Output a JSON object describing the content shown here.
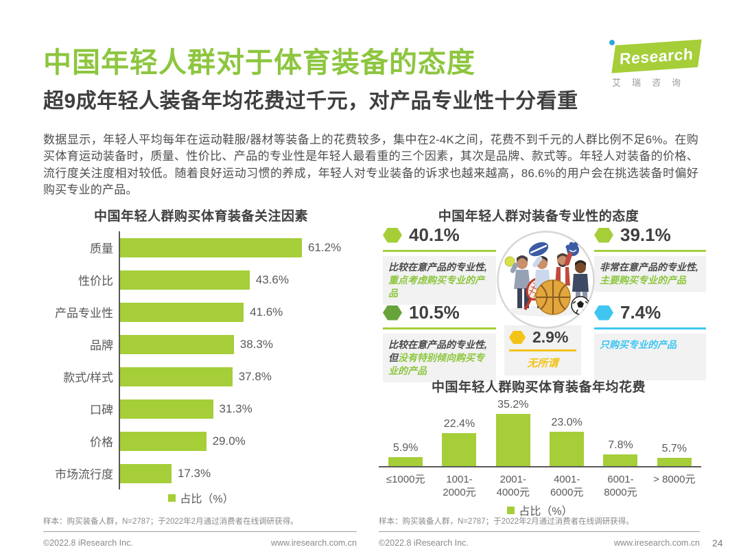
{
  "colors": {
    "brand-green": "#8DC63F",
    "bar-green": "#A5CE39",
    "dark-green": "#67A33B",
    "yellow": "#F3C318",
    "cyan": "#3EC6F0",
    "dot-blue": "#2EA7E0",
    "box-gray": "#F2F2F2"
  },
  "header": {
    "title": "中国年轻人群对于体育装备的态度",
    "subtitle": "超9成年轻人装备年均花费过千元，对产品专业性十分看重"
  },
  "logo": {
    "brand_prefix": "i",
    "brand": "Research",
    "subtext": "艾瑞咨询"
  },
  "intro": {
    "text": "数据显示，年轻人平均每年在运动鞋服/器材等装备上的花费较多，集中在2-4K之间，花费不到千元的人群比例不足6%。在购买体育运动装备时，质量、性价比、产品的专业性是年轻人最看重的三个因素，其次是品牌、款式等。年轻人对装备的价格、流行度关注度相对较低。随着良好运动习惯的养成，年轻人对专业装备的诉求也越来越高，86.6%的用户会在挑选装备时偏好购买专业的产品。"
  },
  "attitude": {
    "title": "中国年轻人群对装备专业性的态度",
    "stats": [
      {
        "value": "40.1%",
        "desc_plain": "比较在意产品的专业性,",
        "desc_highlight": "重点考虑购买专业的产品"
      },
      {
        "value": "39.1%",
        "desc_plain": "非常在意产品的专业性,",
        "desc_highlight": "主要购买专业的产品"
      },
      {
        "value": "10.5%",
        "desc_plain": "比较在意产品的专业性,但",
        "desc_highlight": "没有特别倾向购买专业的产品"
      },
      {
        "value": "2.9%",
        "desc_plain": "",
        "desc_highlight": "无所谓"
      },
      {
        "value": "7.4%",
        "desc_plain": "",
        "desc_highlight": "只购买专业的产品"
      }
    ]
  },
  "chart_data": [
    {
      "type": "bar",
      "orientation": "horizontal",
      "title": "中国年轻人群购买体育装备关注因素",
      "categories": [
        "质量",
        "性价比",
        "产品专业性",
        "品牌",
        "款式/样式",
        "口碑",
        "价格",
        "市场流行度"
      ],
      "values": [
        61.2,
        43.6,
        41.6,
        38.3,
        37.8,
        31.3,
        29.0,
        17.3
      ],
      "unit": "%",
      "legend": "占比（%）",
      "xlim": [
        0,
        65
      ],
      "value_labels": true,
      "grid": false
    },
    {
      "type": "bar",
      "orientation": "vertical",
      "title": "中国年轻人群购买体育装备年均花费",
      "categories": [
        "≤1000元",
        "1001-\n2000元",
        "2001-\n4000元",
        "4001-\n6000元",
        "6001-\n8000元",
        "> 8000元"
      ],
      "values": [
        5.9,
        22.4,
        35.2,
        23.0,
        7.8,
        5.7
      ],
      "unit": "%",
      "legend": "占比（%）",
      "ylim": [
        0,
        40
      ],
      "value_labels": true,
      "grid": false
    }
  ],
  "footnotes": {
    "left": "样本：购买装备人群，N=2787；于2022年2月通过消费者在线调研获得。",
    "right": "样本：购买装备人群，N=2787；于2022年2月通过消费者在线调研获得。"
  },
  "footer": {
    "copyright": "©2022.8 iResearch Inc.",
    "site": "www.iresearch.com.cn",
    "page_number": "24"
  }
}
